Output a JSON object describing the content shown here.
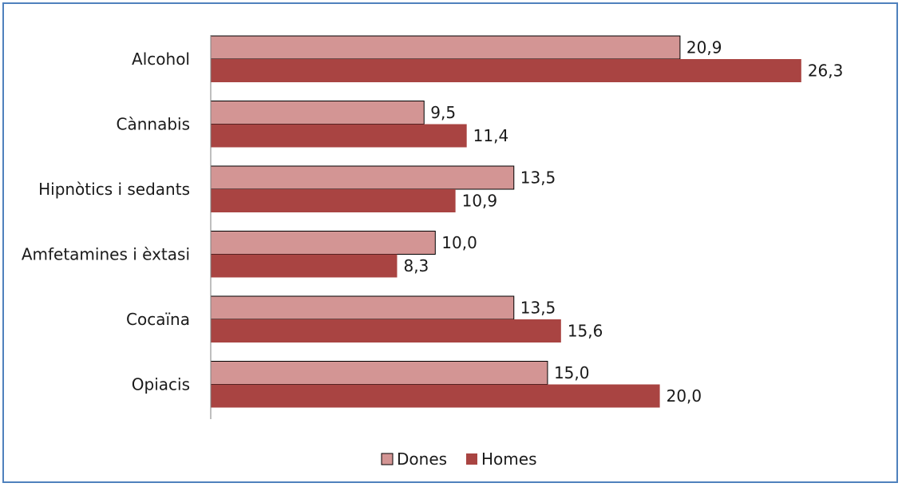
{
  "chart_data": {
    "type": "bar",
    "orientation": "horizontal",
    "categories": [
      "Alcohol",
      "Cànnabis",
      "Hipnòtics i sedants",
      "Amfetamines i èxtasi",
      "Cocaïna",
      "Opiacis"
    ],
    "series": [
      {
        "name": "Dones",
        "values": [
          20.9,
          9.5,
          13.5,
          10.0,
          13.5,
          15.0
        ],
        "labels": [
          "20,9",
          "9,5",
          "13,5",
          "10,0",
          "13,5",
          "15,0"
        ],
        "color": "#d39594"
      },
      {
        "name": "Homes",
        "values": [
          26.3,
          11.4,
          10.9,
          8.3,
          15.6,
          20.0
        ],
        "labels": [
          "26,3",
          "11,4",
          "10,9",
          "8,3",
          "15,6",
          "20,0"
        ],
        "color": "#a94442"
      }
    ],
    "xlim": [
      0,
      30
    ],
    "grid": false,
    "legend": "bottom",
    "title": "",
    "xlabel": "",
    "ylabel": ""
  },
  "colors": {
    "border": "#4f81bd",
    "axis": "#7f7f7f",
    "bar_outline": "#000000"
  }
}
